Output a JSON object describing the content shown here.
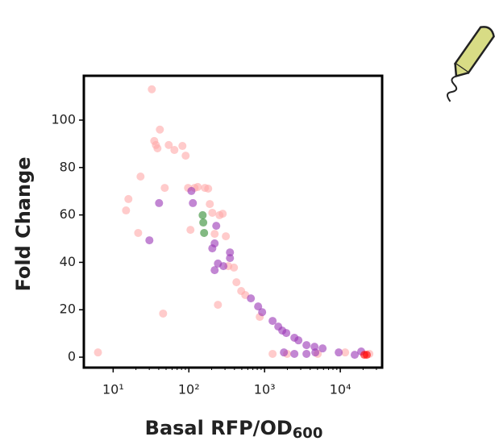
{
  "chart_data": {
    "type": "scatter",
    "x_label": "Basal RFP/OD",
    "x_label_subscript": "600",
    "y_label": "Fold Change",
    "x_log": true,
    "xlim": [
      4.1,
      35700
    ],
    "ylim": [
      -4.4,
      118.7
    ],
    "xticks": [
      {
        "value": 10,
        "label": "10¹"
      },
      {
        "value": 100,
        "label": "10²"
      },
      {
        "value": 1000,
        "label": "10³"
      },
      {
        "value": 10000,
        "label": "10⁴"
      }
    ],
    "yticks": [
      0,
      20,
      40,
      60,
      80,
      100
    ],
    "opacity": 0.6,
    "series": [
      {
        "color": "#ffa8a8",
        "x": [
          6.3,
          14.8,
          15.9,
          21.4,
          23.0,
          32.4,
          34.9,
          36.7,
          38.5,
          41.4,
          45.7,
          48.0,
          54.2,
          64.4,
          82.2,
          90.7,
          97.5,
          105,
          119,
          131,
          163,
          180,
          189,
          204,
          219,
          242,
          254,
          280,
          308,
          332,
          394,
          425,
          491,
          556,
          863,
          1276,
          1986,
          5035,
          11600,
          24200
        ],
        "values": [
          2.0,
          61.9,
          66.7,
          52.4,
          76.2,
          113,
          91.2,
          89.5,
          88.1,
          96.0,
          18.4,
          71.4,
          89.5,
          87.4,
          89.1,
          85.0,
          71.4,
          53.7,
          71.4,
          71.8,
          71.4,
          71.1,
          64.6,
          60.9,
          52.0,
          22.1,
          59.9,
          60.5,
          51.0,
          38.4,
          37.8,
          31.6,
          27.9,
          26.2,
          17.0,
          1.4,
          1.4,
          1.4,
          2.0,
          1.4
        ]
      },
      {
        "color": "#9a35b5",
        "x": [
          30.1,
          40.4,
          108,
          113,
          230,
          219,
          204,
          242,
          219,
          286,
          349,
          349,
          659,
          822,
          929,
          1276,
          1517,
          1714,
          1936,
          2476,
          2800,
          3575,
          4570,
          5838,
          1800,
          2476,
          3575,
          4680,
          9530,
          15500,
          18900
        ],
        "values": [
          49.3,
          65.0,
          70.1,
          65.0,
          55.4,
          48.0,
          45.9,
          39.5,
          36.7,
          38.4,
          44.2,
          41.8,
          24.8,
          21.4,
          19.0,
          15.3,
          12.9,
          11.2,
          10.2,
          8.2,
          7.1,
          5.1,
          4.4,
          3.7,
          2.0,
          1.4,
          1.4,
          2.0,
          2.0,
          1.0,
          2.4
        ]
      },
      {
        "color": "#2e8b2e",
        "x": [
          152,
          155,
          159
        ],
        "values": [
          59.9,
          56.8,
          52.4
        ]
      },
      {
        "color": "#ff0000",
        "x": [
          20800,
          22400
        ],
        "values": [
          1.0,
          1.0
        ]
      }
    ]
  }
}
